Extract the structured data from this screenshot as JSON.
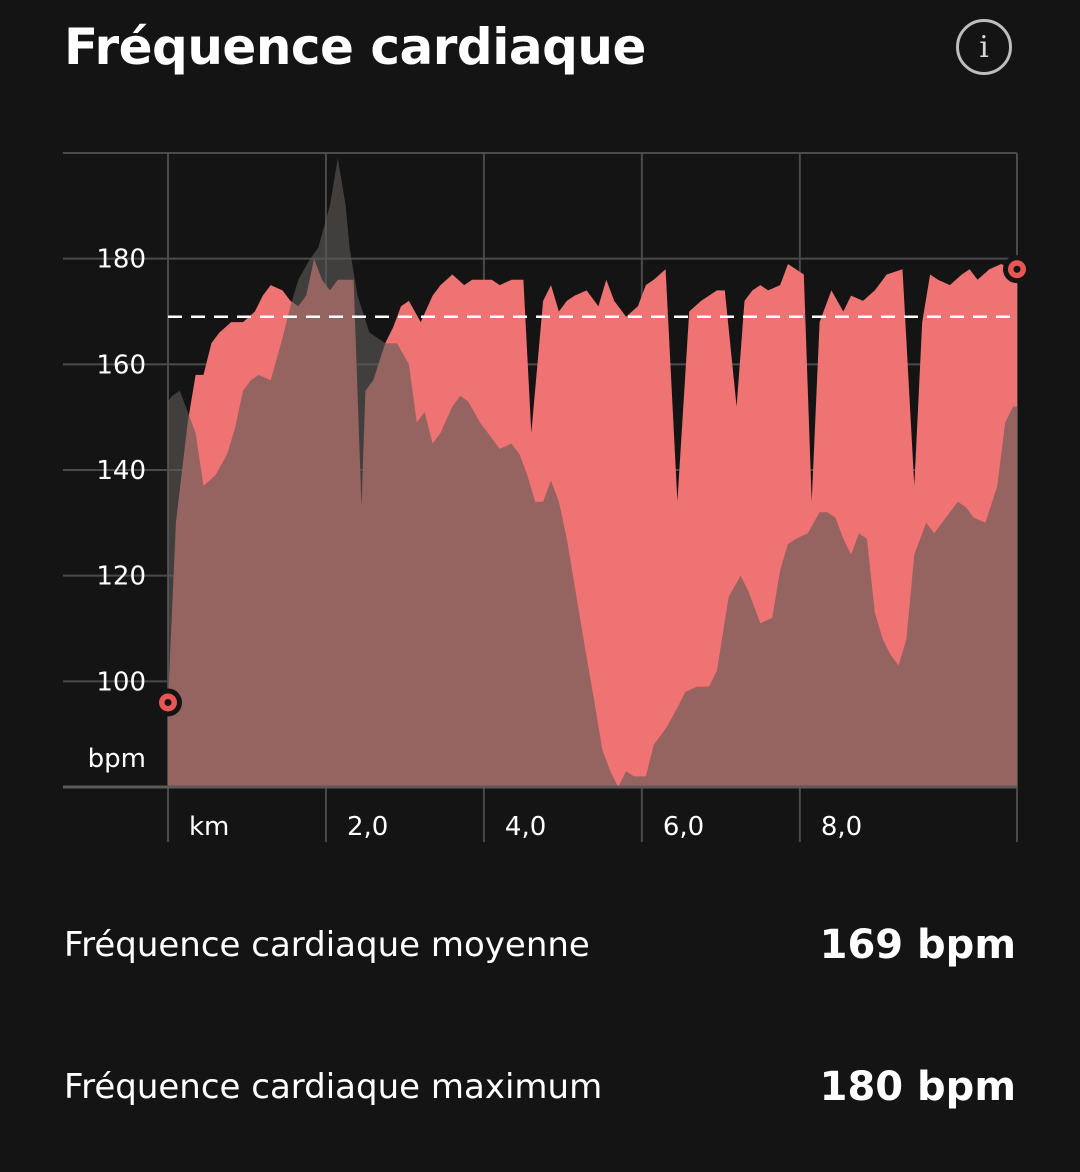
{
  "header": {
    "title": "Fréquence cardiaque",
    "info_icon": "info-icon",
    "info_glyph": "i"
  },
  "chart_data": {
    "type": "area",
    "y_unit": "bpm",
    "x_unit": "km",
    "ylim": [
      80,
      200
    ],
    "xlim": [
      0,
      10.75
    ],
    "y_ticks": [
      100,
      120,
      140,
      160,
      180
    ],
    "y_tick_labels": [
      "100",
      "120",
      "140",
      "160",
      "180"
    ],
    "x_ticks": [
      2.0,
      4.0,
      6.0,
      8.0
    ],
    "x_tick_labels": [
      "2,0",
      "4,0",
      "6,0",
      "8,0"
    ],
    "average_line": 169,
    "grid": true,
    "colors": {
      "heart_rate": "#ee7372",
      "elevation": "#7f7b77",
      "marker": "#e85555",
      "background": "#141414"
    },
    "series": [
      {
        "name": "",
        "role": "heart_rate",
        "x": [
          0.0,
          0.1,
          0.25,
          0.35,
          0.45,
          0.55,
          0.65,
          0.8,
          0.95,
          1.1,
          1.2,
          1.3,
          1.45,
          1.55,
          1.65,
          1.75,
          1.85,
          1.95,
          2.05,
          2.15,
          2.25,
          2.35,
          2.45,
          2.5,
          2.6,
          2.75,
          2.85,
          2.95,
          3.05,
          3.2,
          3.35,
          3.45,
          3.6,
          3.75,
          3.85,
          3.95,
          4.1,
          4.2,
          4.35,
          4.5,
          4.6,
          4.75,
          4.85,
          4.95,
          5.05,
          5.15,
          5.3,
          5.45,
          5.55,
          5.65,
          5.8,
          5.95,
          6.05,
          6.15,
          6.3,
          6.45,
          6.6,
          6.75,
          6.95,
          7.05,
          7.2,
          7.3,
          7.4,
          7.5,
          7.6,
          7.75,
          7.85,
          7.95,
          8.05,
          8.15,
          8.25,
          8.4,
          8.55,
          8.65,
          8.8,
          8.95,
          9.1,
          9.3,
          9.45,
          9.55,
          9.65,
          9.75,
          9.9,
          10.05,
          10.15,
          10.25,
          10.4,
          10.55,
          10.7,
          10.75
        ],
        "values": [
          96,
          130,
          149,
          158,
          158,
          164,
          166,
          168,
          168,
          170,
          173,
          175,
          174,
          172,
          171,
          173,
          180,
          176,
          174,
          176,
          176,
          176,
          133,
          155,
          157,
          164,
          167,
          171,
          172,
          168,
          173,
          175,
          177,
          175,
          176,
          176,
          176,
          175,
          176,
          176,
          147,
          172,
          175,
          170,
          172,
          173,
          174,
          171,
          176,
          172,
          169,
          171,
          175,
          176,
          178,
          134,
          170,
          172,
          174,
          174,
          152,
          172,
          174,
          175,
          174,
          175,
          179,
          178,
          177,
          134,
          168,
          174,
          170,
          173,
          172,
          174,
          177,
          178,
          137,
          168,
          177,
          176,
          175,
          177,
          178,
          176,
          178,
          179,
          178,
          178
        ]
      },
      {
        "name": "",
        "role": "elevation",
        "x": [
          0.0,
          0.05,
          0.15,
          0.25,
          0.35,
          0.45,
          0.6,
          0.75,
          0.85,
          0.95,
          1.05,
          1.15,
          1.3,
          1.45,
          1.55,
          1.65,
          1.8,
          1.9,
          2.05,
          2.15,
          2.25,
          2.3,
          2.4,
          2.55,
          2.75,
          2.9,
          3.05,
          3.15,
          3.25,
          3.35,
          3.45,
          3.6,
          3.7,
          3.8,
          3.95,
          4.05,
          4.2,
          4.35,
          4.45,
          4.55,
          4.65,
          4.75,
          4.85,
          4.95,
          5.05,
          5.15,
          5.25,
          5.4,
          5.5,
          5.6,
          5.7,
          5.8,
          5.9,
          6.05,
          6.15,
          6.3,
          6.45,
          6.55,
          6.7,
          6.85,
          6.95,
          7.1,
          7.25,
          7.35,
          7.5,
          7.65,
          7.75,
          7.85,
          7.95,
          8.1,
          8.25,
          8.35,
          8.45,
          8.55,
          8.65,
          8.75,
          8.85,
          8.95,
          9.05,
          9.15,
          9.25,
          9.35,
          9.45,
          9.6,
          9.7,
          9.85,
          10.0,
          10.1,
          10.2,
          10.35,
          10.5,
          10.6,
          10.7,
          10.75
        ],
        "values": [
          153,
          154,
          155,
          151,
          147,
          137,
          139,
          143,
          148,
          155,
          157,
          158,
          157,
          165,
          171,
          176,
          180,
          182,
          190,
          199,
          190,
          182,
          173,
          166,
          164,
          164,
          160,
          149,
          151,
          145,
          147,
          152,
          154,
          153,
          149,
          147,
          144,
          145,
          143,
          139,
          134,
          134,
          138,
          134,
          127,
          118,
          109,
          96,
          87,
          83,
          80,
          83,
          82,
          82,
          88,
          91,
          95,
          98,
          99,
          99,
          102,
          116,
          120,
          117,
          111,
          112,
          121,
          126,
          127,
          128,
          132,
          132,
          131,
          127,
          124,
          128,
          127,
          113,
          108,
          105,
          103,
          108,
          124,
          130,
          128,
          131,
          134,
          133,
          131,
          130,
          137,
          149,
          152,
          152
        ]
      }
    ]
  },
  "stats": {
    "average": {
      "label": "Fréquence cardiaque moyenne",
      "value": "169 bpm"
    },
    "maximum": {
      "label": "Fréquence cardiaque maximum",
      "value": "180 bpm"
    }
  }
}
